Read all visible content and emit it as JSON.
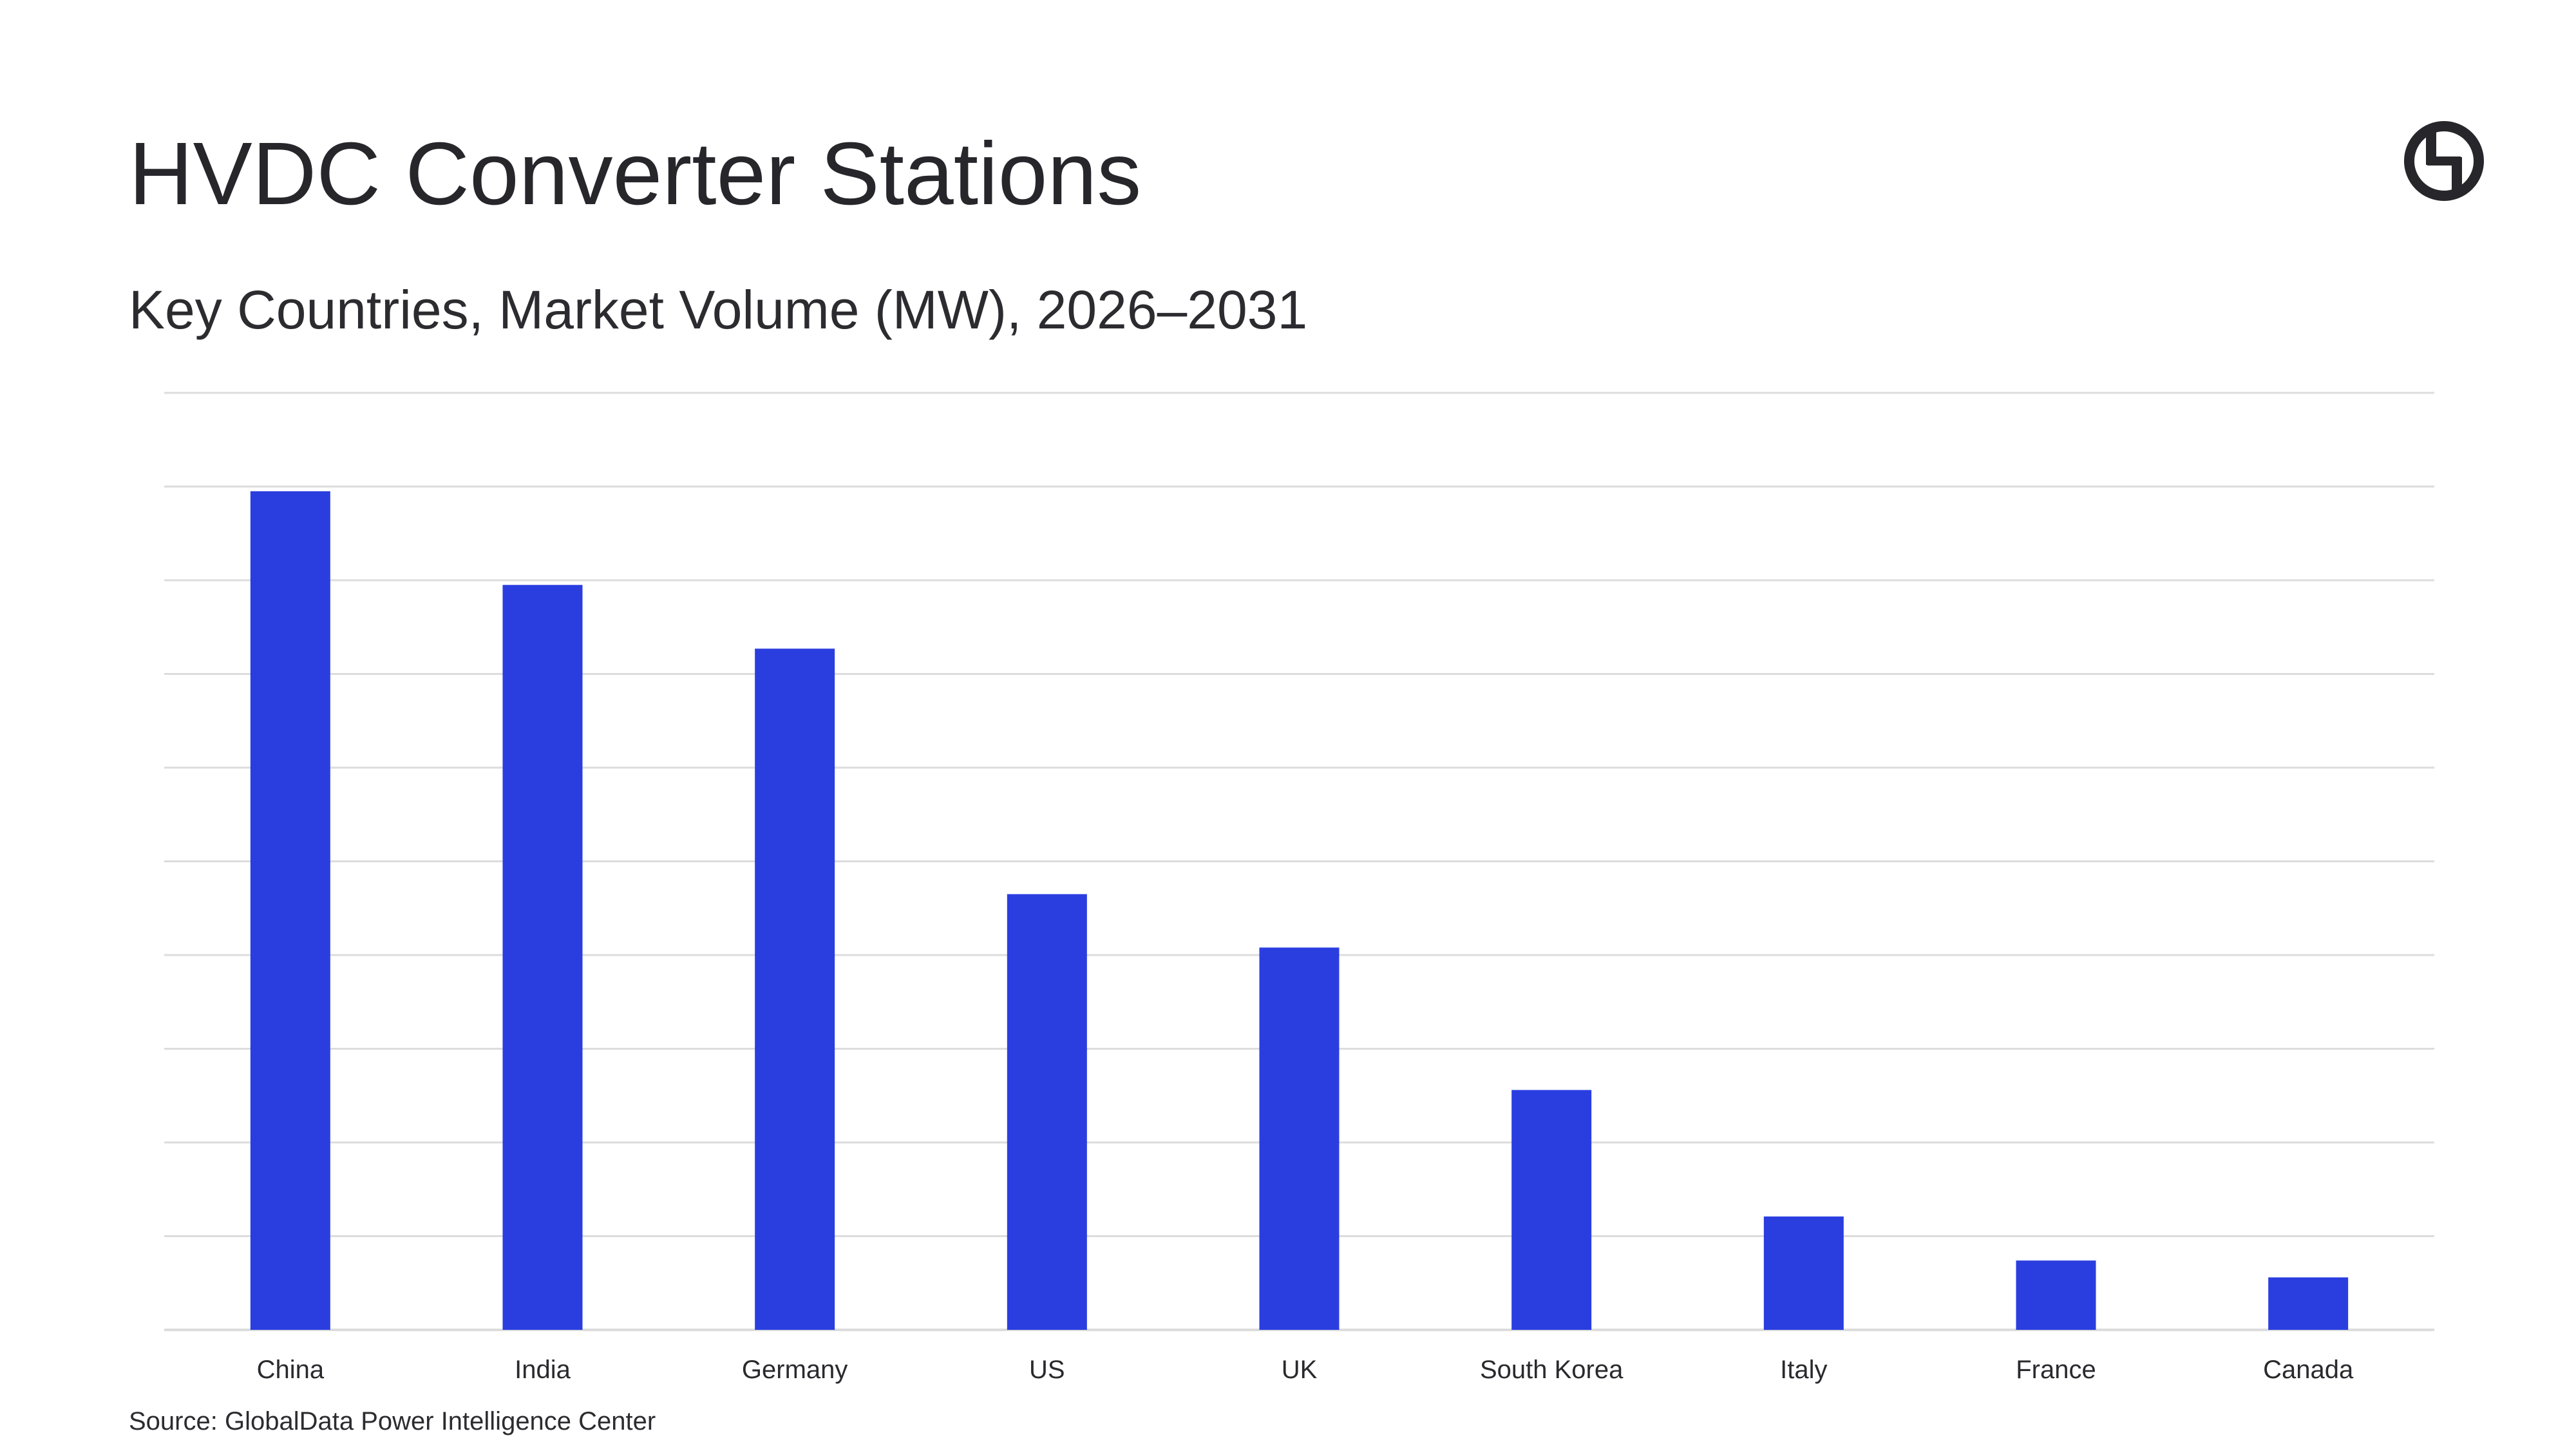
{
  "header": {
    "title": "HVDC Converter Stations",
    "subtitle": "Key Countries, Market Volume (MW), 2026–2031"
  },
  "footer": {
    "source": "Source: GlobalData Power Intelligence Center"
  },
  "logo": {
    "icon": "globaldata-logo-icon"
  },
  "colors": {
    "bar": "#2a3ee0",
    "grid": "#dcdcdc",
    "text": "#2a2a2e"
  },
  "chart_data": {
    "type": "bar",
    "categories": [
      "China",
      "India",
      "Germany",
      "US",
      "UK",
      "South Korea",
      "Italy",
      "France",
      "Canada"
    ],
    "values": [
      8.95,
      7.95,
      7.27,
      4.65,
      4.08,
      2.56,
      1.21,
      0.74,
      0.56
    ],
    "ylim": [
      0,
      10
    ],
    "gridlines": 10,
    "grid": true,
    "y_tick_labels_shown": false,
    "legend": "none"
  }
}
